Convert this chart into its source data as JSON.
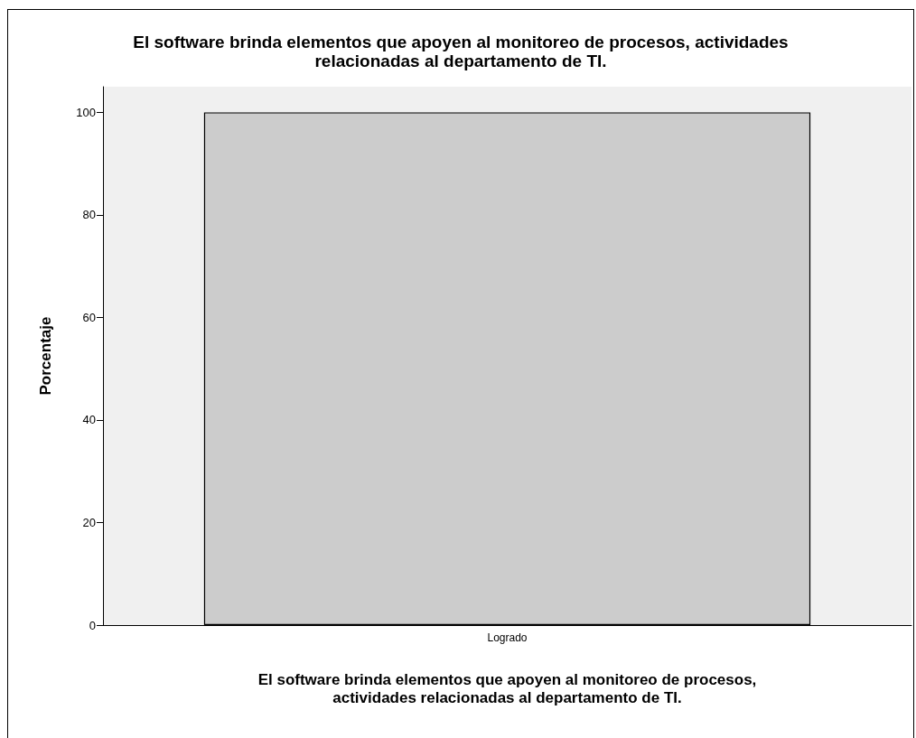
{
  "chart_data": {
    "type": "bar",
    "title": "El software brinda elementos que apoyen al monitoreo de procesos, actividades\nrelacionadas al departamento de TI.",
    "xlabel": "El software brinda elementos que apoyen al monitoreo de procesos,\nactividades relacionadas al departamento de TI.",
    "ylabel": "Porcentaje",
    "categories": [
      "Logrado"
    ],
    "values": [
      100
    ],
    "color": "#cccccc",
    "ylim": [
      0,
      105
    ],
    "yticks": [
      0,
      20,
      40,
      60,
      80,
      100
    ],
    "grid": false
  }
}
